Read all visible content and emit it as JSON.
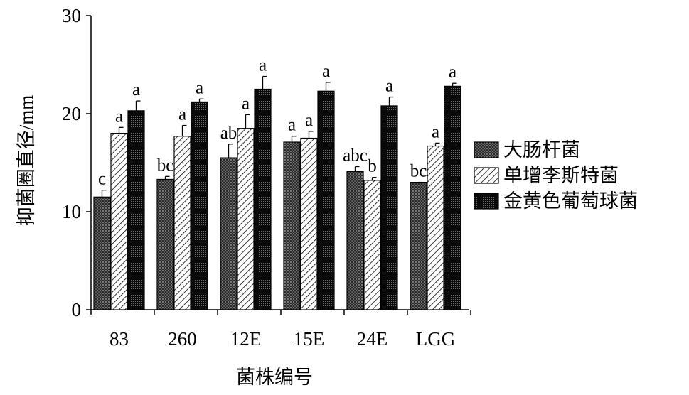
{
  "chart_data": {
    "type": "bar",
    "title": "",
    "xlabel": "菌株编号",
    "ylabel": "抑菌圈直径/mm",
    "ylim": [
      0,
      30
    ],
    "yticks": [
      0,
      10,
      20,
      30
    ],
    "categories": [
      "83",
      "260",
      "12E",
      "15E",
      "24E",
      "LGG"
    ],
    "legend_position": "right",
    "grid": false,
    "series": [
      {
        "name": "大肠杆菌",
        "pattern": "crosshatch-dark",
        "values": [
          11.5,
          13.3,
          15.5,
          17.1,
          14.1,
          13.0
        ],
        "errors": [
          0.7,
          0.3,
          1.4,
          0.6,
          0.5,
          0.0
        ],
        "labels": [
          "c",
          "bc",
          "ab",
          "a",
          "abc",
          "bc"
        ]
      },
      {
        "name": "单增李斯特菌",
        "pattern": "diagonal-hatch",
        "values": [
          18.0,
          17.7,
          18.5,
          17.5,
          13.2,
          16.7
        ],
        "errors": [
          0.6,
          1.1,
          1.4,
          0.7,
          0.3,
          0.3
        ],
        "labels": [
          "a",
          "a",
          "a",
          "a",
          "b",
          "a"
        ]
      },
      {
        "name": "金黄色葡萄球菌",
        "pattern": "dense-dots",
        "values": [
          20.3,
          21.2,
          22.5,
          22.3,
          20.8,
          22.8
        ],
        "errors": [
          1.0,
          0.3,
          1.3,
          0.9,
          0.9,
          0.3
        ],
        "labels": [
          "a",
          "a",
          "a",
          "a",
          "a",
          "a"
        ]
      }
    ]
  }
}
